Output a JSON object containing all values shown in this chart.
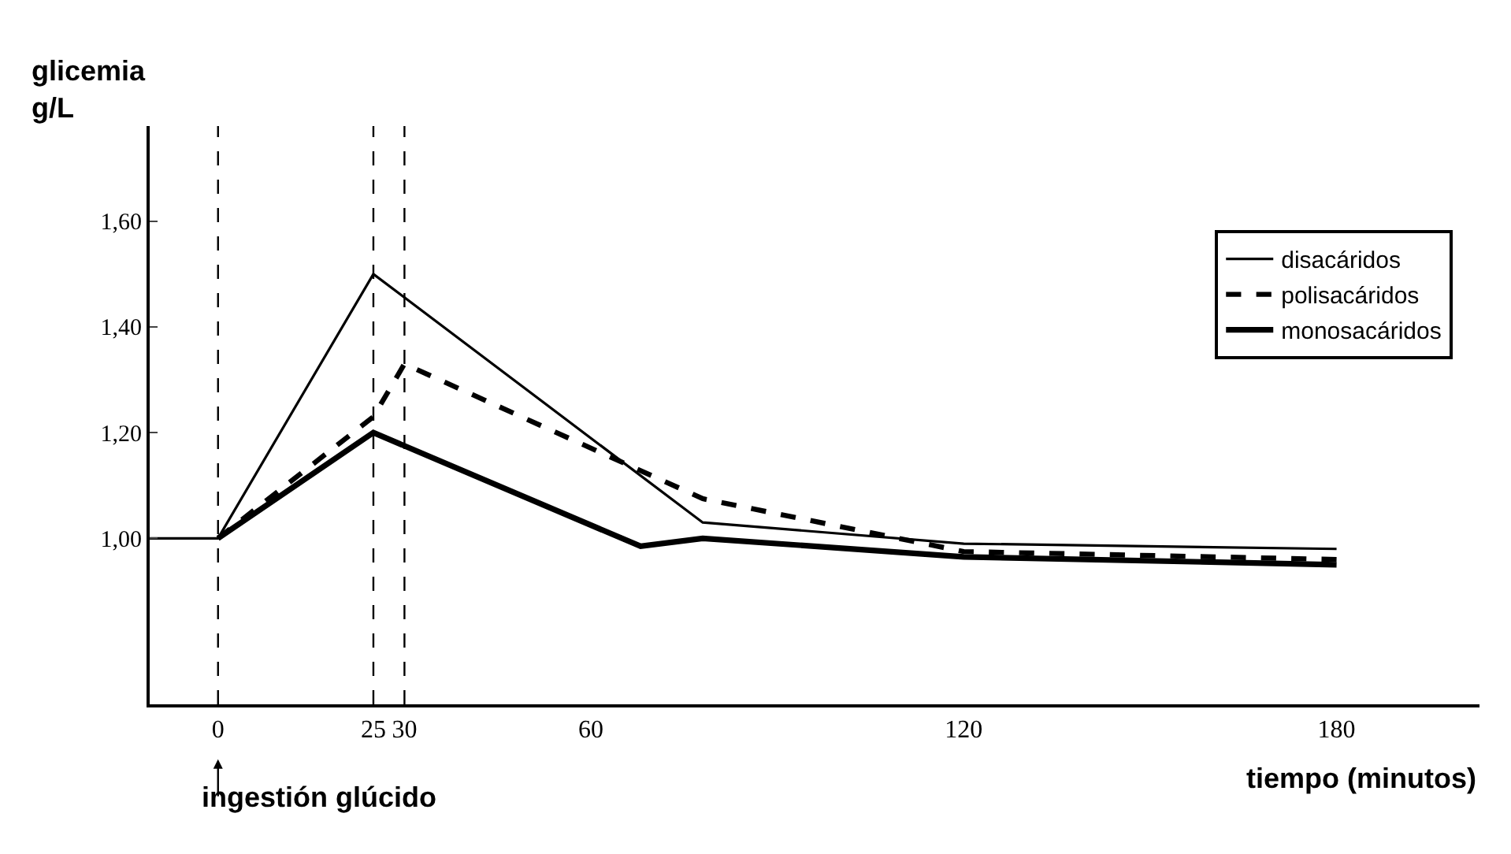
{
  "chart_data": {
    "type": "line",
    "xlabel": "tiempo (minutos)",
    "ylabel": "glicemia\ng/L",
    "xlim": [
      -11,
      203
    ],
    "ylim": [
      0.686,
      1.78
    ],
    "xticks": [
      0,
      25,
      30,
      60,
      120,
      180
    ],
    "yticks": [
      {
        "value": 1.0,
        "label": "1,00"
      },
      {
        "value": 1.2,
        "label": "1,20"
      },
      {
        "value": 1.4,
        "label": "1,40"
      },
      {
        "value": 1.6,
        "label": "1,60"
      }
    ],
    "legend": "top right",
    "marker": "none",
    "series": [
      {
        "name": "disacáridos",
        "color": "#000000",
        "line_style": "solid",
        "x": [
          -11,
          0,
          25,
          78,
          120,
          180
        ],
        "values": [
          1.0,
          1.0,
          1.5,
          1.03,
          0.99,
          0.98
        ]
      },
      {
        "name": "polisacáridos",
        "color": "#000000",
        "line_style": "dashed",
        "x": [
          0,
          25,
          30,
          78,
          120,
          180
        ],
        "values": [
          1.0,
          1.23,
          1.33,
          1.075,
          0.975,
          0.96
        ]
      },
      {
        "name": "monosacáridos",
        "color": "#000000",
        "line_style": "solid",
        "x": [
          0,
          25,
          68,
          78,
          120,
          180
        ],
        "values": [
          1.0,
          1.2,
          0.985,
          1.0,
          0.965,
          0.95
        ]
      }
    ],
    "ref_lines": [
      {
        "axis": "x",
        "value": 0,
        "label": null,
        "line_style": "dashed",
        "color": "#000000"
      },
      {
        "axis": "x",
        "value": 25,
        "label": null,
        "line_style": "dashed",
        "color": "#000000"
      },
      {
        "axis": "x",
        "value": 30,
        "label": null,
        "line_style": "dashed",
        "color": "#000000"
      }
    ],
    "annotations": [
      "ingestión glúcido"
    ]
  }
}
